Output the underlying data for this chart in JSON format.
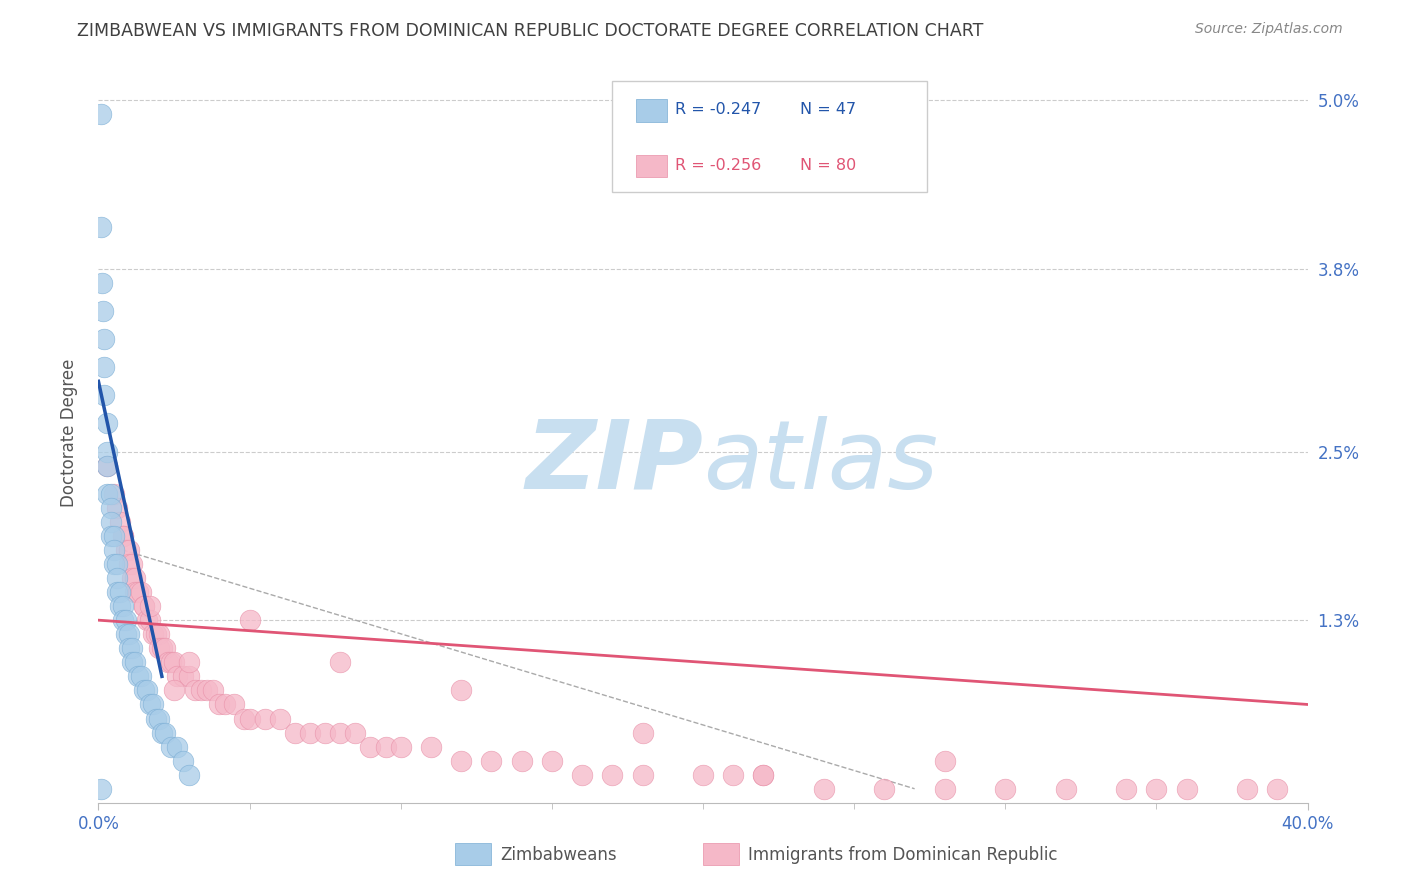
{
  "title": "ZIMBABWEAN VS IMMIGRANTS FROM DOMINICAN REPUBLIC DOCTORATE DEGREE CORRELATION CHART",
  "source": "Source: ZipAtlas.com",
  "ylabel": "Doctorate Degree",
  "xlim": [
    0.0,
    0.4
  ],
  "ylim": [
    0.0,
    0.0527
  ],
  "yticks": [
    0.013,
    0.025,
    0.038,
    0.05
  ],
  "ytick_labels": [
    "1.3%",
    "2.5%",
    "3.8%",
    "5.0%"
  ],
  "xticks": [
    0.0,
    0.4
  ],
  "xtick_labels": [
    "0.0%",
    "40.0%"
  ],
  "series1_name": "Zimbabweans",
  "series2_name": "Immigrants from Dominican Republic",
  "series1_color": "#a8cce8",
  "series2_color": "#f5b8c8",
  "series1_edge_color": "#7aadd4",
  "series2_edge_color": "#e890a8",
  "trend1_color": "#2255aa",
  "trend2_color": "#e05575",
  "dash_color": "#aaaaaa",
  "watermark_color": "#c8dff0",
  "background_color": "#ffffff",
  "grid_color": "#cccccc",
  "title_color": "#404040",
  "axis_label_color": "#555555",
  "tick_label_color": "#4472c4",
  "legend_box_color": "#cccccc",
  "legend_R1": "R = -0.247",
  "legend_N1": "N = 47",
  "legend_R2": "R = -0.256",
  "legend_N2": "N = 80",
  "s1_x": [
    0.0008,
    0.001,
    0.0012,
    0.0015,
    0.002,
    0.002,
    0.002,
    0.003,
    0.003,
    0.003,
    0.003,
    0.004,
    0.004,
    0.004,
    0.004,
    0.005,
    0.005,
    0.005,
    0.006,
    0.006,
    0.006,
    0.007,
    0.007,
    0.008,
    0.008,
    0.009,
    0.009,
    0.01,
    0.01,
    0.011,
    0.011,
    0.012,
    0.013,
    0.014,
    0.015,
    0.016,
    0.017,
    0.018,
    0.019,
    0.02,
    0.021,
    0.022,
    0.024,
    0.026,
    0.028,
    0.03,
    0.001
  ],
  "s1_y": [
    0.049,
    0.041,
    0.037,
    0.035,
    0.033,
    0.031,
    0.029,
    0.027,
    0.025,
    0.024,
    0.022,
    0.022,
    0.021,
    0.02,
    0.019,
    0.019,
    0.018,
    0.017,
    0.017,
    0.016,
    0.015,
    0.015,
    0.014,
    0.014,
    0.013,
    0.013,
    0.012,
    0.012,
    0.011,
    0.011,
    0.01,
    0.01,
    0.009,
    0.009,
    0.008,
    0.008,
    0.007,
    0.007,
    0.006,
    0.006,
    0.005,
    0.005,
    0.004,
    0.004,
    0.003,
    0.002,
    0.001
  ],
  "s2_x": [
    0.003,
    0.005,
    0.006,
    0.007,
    0.008,
    0.008,
    0.009,
    0.01,
    0.01,
    0.011,
    0.011,
    0.012,
    0.012,
    0.013,
    0.014,
    0.015,
    0.015,
    0.016,
    0.017,
    0.017,
    0.018,
    0.019,
    0.02,
    0.02,
    0.021,
    0.022,
    0.023,
    0.024,
    0.025,
    0.026,
    0.028,
    0.03,
    0.03,
    0.032,
    0.034,
    0.036,
    0.038,
    0.04,
    0.042,
    0.045,
    0.048,
    0.05,
    0.055,
    0.06,
    0.065,
    0.07,
    0.075,
    0.08,
    0.085,
    0.09,
    0.095,
    0.1,
    0.11,
    0.12,
    0.13,
    0.14,
    0.15,
    0.16,
    0.17,
    0.18,
    0.2,
    0.21,
    0.22,
    0.24,
    0.26,
    0.28,
    0.3,
    0.32,
    0.34,
    0.36,
    0.38,
    0.39,
    0.35,
    0.28,
    0.22,
    0.18,
    0.12,
    0.08,
    0.05,
    0.025
  ],
  "s2_y": [
    0.024,
    0.022,
    0.021,
    0.02,
    0.019,
    0.019,
    0.018,
    0.018,
    0.017,
    0.017,
    0.016,
    0.016,
    0.015,
    0.015,
    0.015,
    0.014,
    0.014,
    0.013,
    0.013,
    0.014,
    0.012,
    0.012,
    0.012,
    0.011,
    0.011,
    0.011,
    0.01,
    0.01,
    0.01,
    0.009,
    0.009,
    0.009,
    0.01,
    0.008,
    0.008,
    0.008,
    0.008,
    0.007,
    0.007,
    0.007,
    0.006,
    0.006,
    0.006,
    0.006,
    0.005,
    0.005,
    0.005,
    0.005,
    0.005,
    0.004,
    0.004,
    0.004,
    0.004,
    0.003,
    0.003,
    0.003,
    0.003,
    0.002,
    0.002,
    0.002,
    0.002,
    0.002,
    0.002,
    0.001,
    0.001,
    0.001,
    0.001,
    0.001,
    0.001,
    0.001,
    0.001,
    0.001,
    0.001,
    0.003,
    0.002,
    0.005,
    0.008,
    0.01,
    0.013,
    0.008
  ]
}
